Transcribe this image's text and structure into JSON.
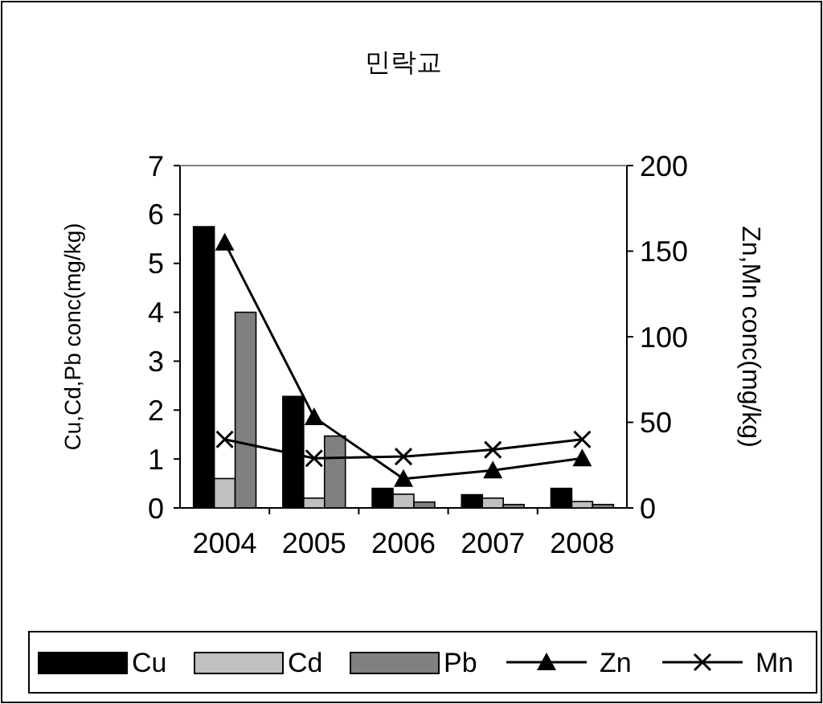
{
  "chart_data": {
    "type": "bar",
    "title": "민락교",
    "categories": [
      "2004",
      "2005",
      "2006",
      "2007",
      "2008"
    ],
    "ylabel": "Cu,Cd,Pb conc(mg/kg)",
    "y2label": "Zn,Mn conc(mg/kg)",
    "series": [
      {
        "name": "Cu",
        "color": "#000000",
        "values": [
          5.75,
          2.28,
          0.4,
          0.27,
          0.4
        ]
      },
      {
        "name": "Cd",
        "color": "#c0c0c0",
        "values": [
          0.6,
          0.2,
          0.28,
          0.2,
          0.13
        ]
      },
      {
        "name": "Pb",
        "color": "#808080",
        "values": [
          4.0,
          1.47,
          0.12,
          0.07,
          0.07
        ]
      },
      {
        "name": "Zn",
        "type": "line",
        "axis": "y2",
        "color": "#000000",
        "marker": "triangle",
        "values": [
          155,
          53,
          17,
          22,
          29
        ]
      },
      {
        "name": "Mn",
        "type": "line",
        "axis": "y2",
        "color": "#000000",
        "marker": "cross",
        "values": [
          40,
          29,
          30,
          34,
          40
        ]
      }
    ],
    "ylim": [
      0,
      7
    ],
    "yticks": [
      0,
      1,
      2,
      3,
      4,
      5,
      6,
      7
    ],
    "y2lim": [
      0,
      200
    ],
    "y2ticks": [
      0,
      50,
      100,
      150,
      200
    ],
    "grid": false,
    "legend": "bottom"
  }
}
